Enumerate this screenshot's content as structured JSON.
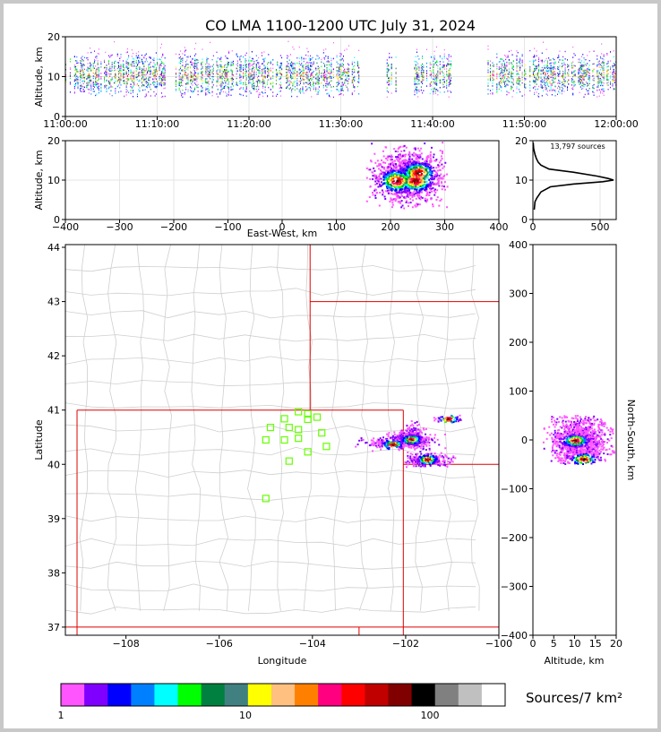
{
  "chart_data": [
    {
      "id": "time_height",
      "type": "scatter",
      "title": "CO LMA 1100-1200 UTC July 31, 2024",
      "xlabel": "",
      "ylabel": "Altitude, km",
      "x_ticks": [
        "11:00:00",
        "11:10:00",
        "11:20:00",
        "11:30:00",
        "11:40:00",
        "11:50:00",
        "12:00:00"
      ],
      "y_ticks": [
        0,
        10,
        20
      ],
      "xlim_minutes": [
        0,
        60
      ],
      "ylim": [
        0,
        20
      ],
      "grid": true,
      "activity_bursts_minutes": [
        [
          0,
          11
        ],
        [
          12,
          32
        ],
        [
          35,
          36
        ],
        [
          38,
          42
        ],
        [
          46,
          60
        ]
      ],
      "altitude_range_km": [
        5,
        19
      ]
    },
    {
      "id": "ew_height",
      "type": "heatmap",
      "xlabel": "East-West, km",
      "ylabel": "Altitude, km",
      "x_ticks": [
        -400,
        -300,
        -200,
        -100,
        0,
        100,
        200,
        300,
        400
      ],
      "y_ticks": [
        0,
        10,
        20
      ],
      "xlim": [
        -400,
        400
      ],
      "ylim": [
        0,
        20
      ],
      "grid": true,
      "density_cores": [
        {
          "x_km": 210,
          "alt_km": 10
        },
        {
          "x_km": 250,
          "alt_km": 12
        },
        {
          "x_km": 245,
          "alt_km": 10
        }
      ],
      "extent_x_km": [
        155,
        305
      ],
      "extent_alt_km": [
        3,
        20
      ]
    },
    {
      "id": "altitude_histogram",
      "type": "line",
      "annotation": "13,797 sources",
      "x_ticks": [
        0,
        500
      ],
      "y_ticks": [
        0,
        10,
        20
      ],
      "xlim": [
        0,
        620
      ],
      "ylim": [
        0,
        20
      ],
      "grid": true,
      "points": [
        [
          10,
          2.5
        ],
        [
          15,
          4.5
        ],
        [
          30,
          5.5
        ],
        [
          60,
          7.0
        ],
        [
          130,
          8.3
        ],
        [
          300,
          9.0
        ],
        [
          520,
          9.6
        ],
        [
          600,
          10.0
        ],
        [
          560,
          10.4
        ],
        [
          480,
          11.0
        ],
        [
          300,
          12.0
        ],
        [
          120,
          12.8
        ],
        [
          60,
          13.8
        ],
        [
          40,
          14.5
        ],
        [
          25,
          15.5
        ],
        [
          15,
          16.5
        ],
        [
          5,
          18.0
        ],
        [
          2,
          19.5
        ]
      ]
    },
    {
      "id": "plan_view",
      "type": "heatmap",
      "xlabel": "Longitude",
      "ylabel": "Latitude",
      "x_ticks": [
        -108,
        -106,
        -104,
        -102,
        -100
      ],
      "y_ticks": [
        37,
        38,
        39,
        40,
        41,
        42,
        43,
        44
      ],
      "xlim": [
        -109.3,
        -100.0
      ],
      "ylim": [
        36.85,
        44.05
      ],
      "grid": false,
      "density_cores": [
        {
          "lon": -101.9,
          "lat": 40.47
        },
        {
          "lon": -101.55,
          "lat": 40.1
        },
        {
          "lon": -102.3,
          "lat": 40.38
        },
        {
          "lon": -101.1,
          "lat": 40.85
        }
      ],
      "stations": [
        {
          "lon": -104.3,
          "lat": 40.97
        },
        {
          "lon": -104.1,
          "lat": 40.93
        },
        {
          "lon": -104.1,
          "lat": 40.83
        },
        {
          "lon": -104.6,
          "lat": 40.84
        },
        {
          "lon": -103.9,
          "lat": 40.87
        },
        {
          "lon": -104.9,
          "lat": 40.68
        },
        {
          "lon": -104.5,
          "lat": 40.68
        },
        {
          "lon": -104.3,
          "lat": 40.64
        },
        {
          "lon": -103.8,
          "lat": 40.58
        },
        {
          "lon": -105.0,
          "lat": 40.45
        },
        {
          "lon": -104.6,
          "lat": 40.45
        },
        {
          "lon": -104.3,
          "lat": 40.48
        },
        {
          "lon": -103.7,
          "lat": 40.33
        },
        {
          "lon": -104.1,
          "lat": 40.23
        },
        {
          "lon": -104.5,
          "lat": 40.06
        },
        {
          "lon": -105.0,
          "lat": 39.37
        }
      ],
      "state_border_lines": [
        [
          [
            -109.05,
            41.0
          ],
          [
            -102.05,
            41.0
          ]
        ],
        [
          [
            -109.05,
            41.0
          ],
          [
            -109.05,
            36.85
          ]
        ],
        [
          [
            -102.05,
            41.0
          ],
          [
            -102.05,
            36.85
          ]
        ],
        [
          [
            -109.3,
            37.0
          ],
          [
            -100.0,
            37.0
          ]
        ],
        [
          [
            -104.05,
            44.05
          ],
          [
            -104.05,
            41.0
          ]
        ],
        [
          [
            -104.05,
            43.0
          ],
          [
            -100.0,
            43.0
          ]
        ],
        [
          [
            -102.05,
            40.0
          ],
          [
            -100.0,
            40.0
          ]
        ],
        [
          [
            -103.0,
            37.0
          ],
          [
            -103.0,
            36.85
          ]
        ]
      ]
    },
    {
      "id": "height_ns",
      "type": "heatmap",
      "xlabel": "Altitude, km",
      "ylabel": "North-South, km",
      "x_ticks": [
        0,
        5,
        10,
        15,
        20
      ],
      "y_ticks": [
        -400,
        -300,
        -200,
        -100,
        0,
        100,
        200,
        300,
        400
      ],
      "xlim": [
        0,
        20
      ],
      "ylim": [
        -400,
        400
      ],
      "grid": false,
      "density_cores": [
        {
          "alt_km": 10,
          "ns_km": 0
        },
        {
          "alt_km": 12,
          "ns_km": -38
        }
      ],
      "extent_ns_km": [
        -48,
        52
      ]
    }
  ],
  "colorbar": {
    "label": "Sources/7 km²",
    "tick_labels": [
      "1",
      "10",
      "100"
    ],
    "colors": [
      "#ff55ff",
      "#8000ff",
      "#0000ff",
      "#0080ff",
      "#00ffff",
      "#00ff00",
      "#008040",
      "#408080",
      "#ffff00",
      "#ffc080",
      "#ff8000",
      "#ff0080",
      "#ff0000",
      "#c00000",
      "#800000",
      "#000000",
      "#808080",
      "#c0c0c0",
      "#ffffff"
    ]
  }
}
